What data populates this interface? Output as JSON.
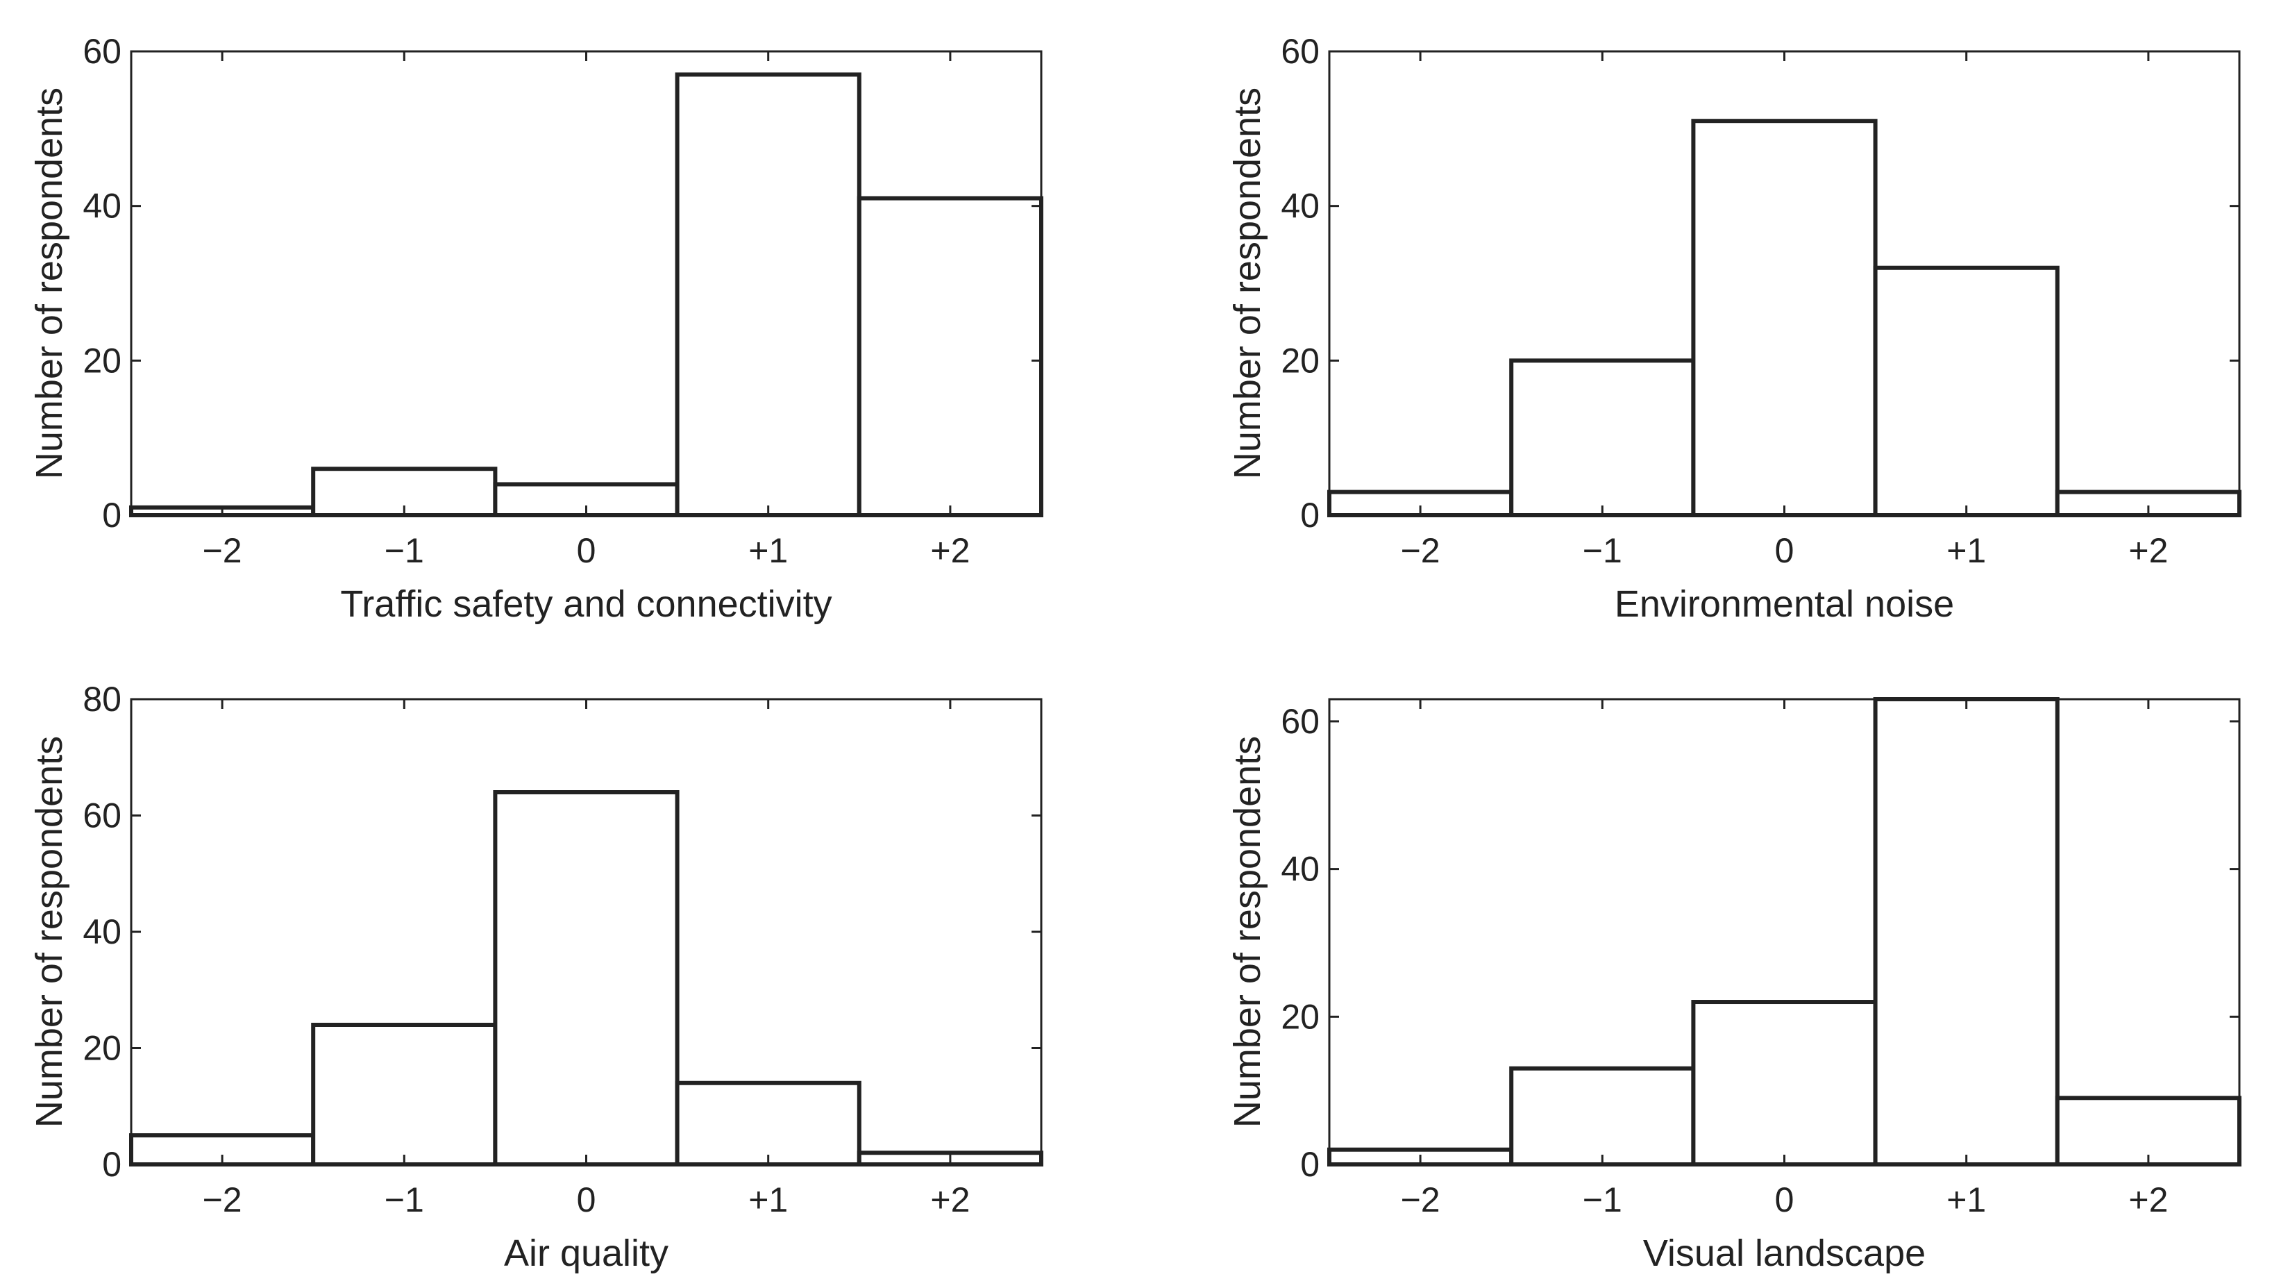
{
  "chart_data": [
    {
      "type": "bar",
      "categories": [
        "−2",
        "−1",
        "0",
        "+1",
        "+2"
      ],
      "values": [
        1,
        6,
        4,
        57,
        41
      ],
      "xlabel": "Traffic safety and connectivity",
      "ylabel": "Number of respondents",
      "ylim": [
        0,
        60
      ],
      "yticks": [
        0,
        20,
        40,
        60
      ],
      "grid": false
    },
    {
      "type": "bar",
      "categories": [
        "−2",
        "−1",
        "0",
        "+1",
        "+2"
      ],
      "values": [
        3,
        20,
        51,
        32,
        3
      ],
      "xlabel": "Environmental noise",
      "ylabel": "Number of respondents",
      "ylim": [
        0,
        60
      ],
      "yticks": [
        0,
        20,
        40,
        60
      ],
      "grid": false
    },
    {
      "type": "bar",
      "categories": [
        "−2",
        "−1",
        "0",
        "+1",
        "+2"
      ],
      "values": [
        5,
        24,
        64,
        14,
        2
      ],
      "xlabel": "Air quality",
      "ylabel": "Number of respondents",
      "ylim": [
        0,
        80
      ],
      "yticks": [
        0,
        20,
        40,
        60,
        80
      ],
      "grid": false
    },
    {
      "type": "bar",
      "categories": [
        "−2",
        "−1",
        "0",
        "+1",
        "+2"
      ],
      "values": [
        2,
        13,
        22,
        63,
        9
      ],
      "xlabel": "Visual landscape",
      "ylabel": "Number of respondents",
      "ylim": [
        0,
        63
      ],
      "yticks": [
        0,
        20,
        40,
        60
      ],
      "grid": false
    }
  ]
}
